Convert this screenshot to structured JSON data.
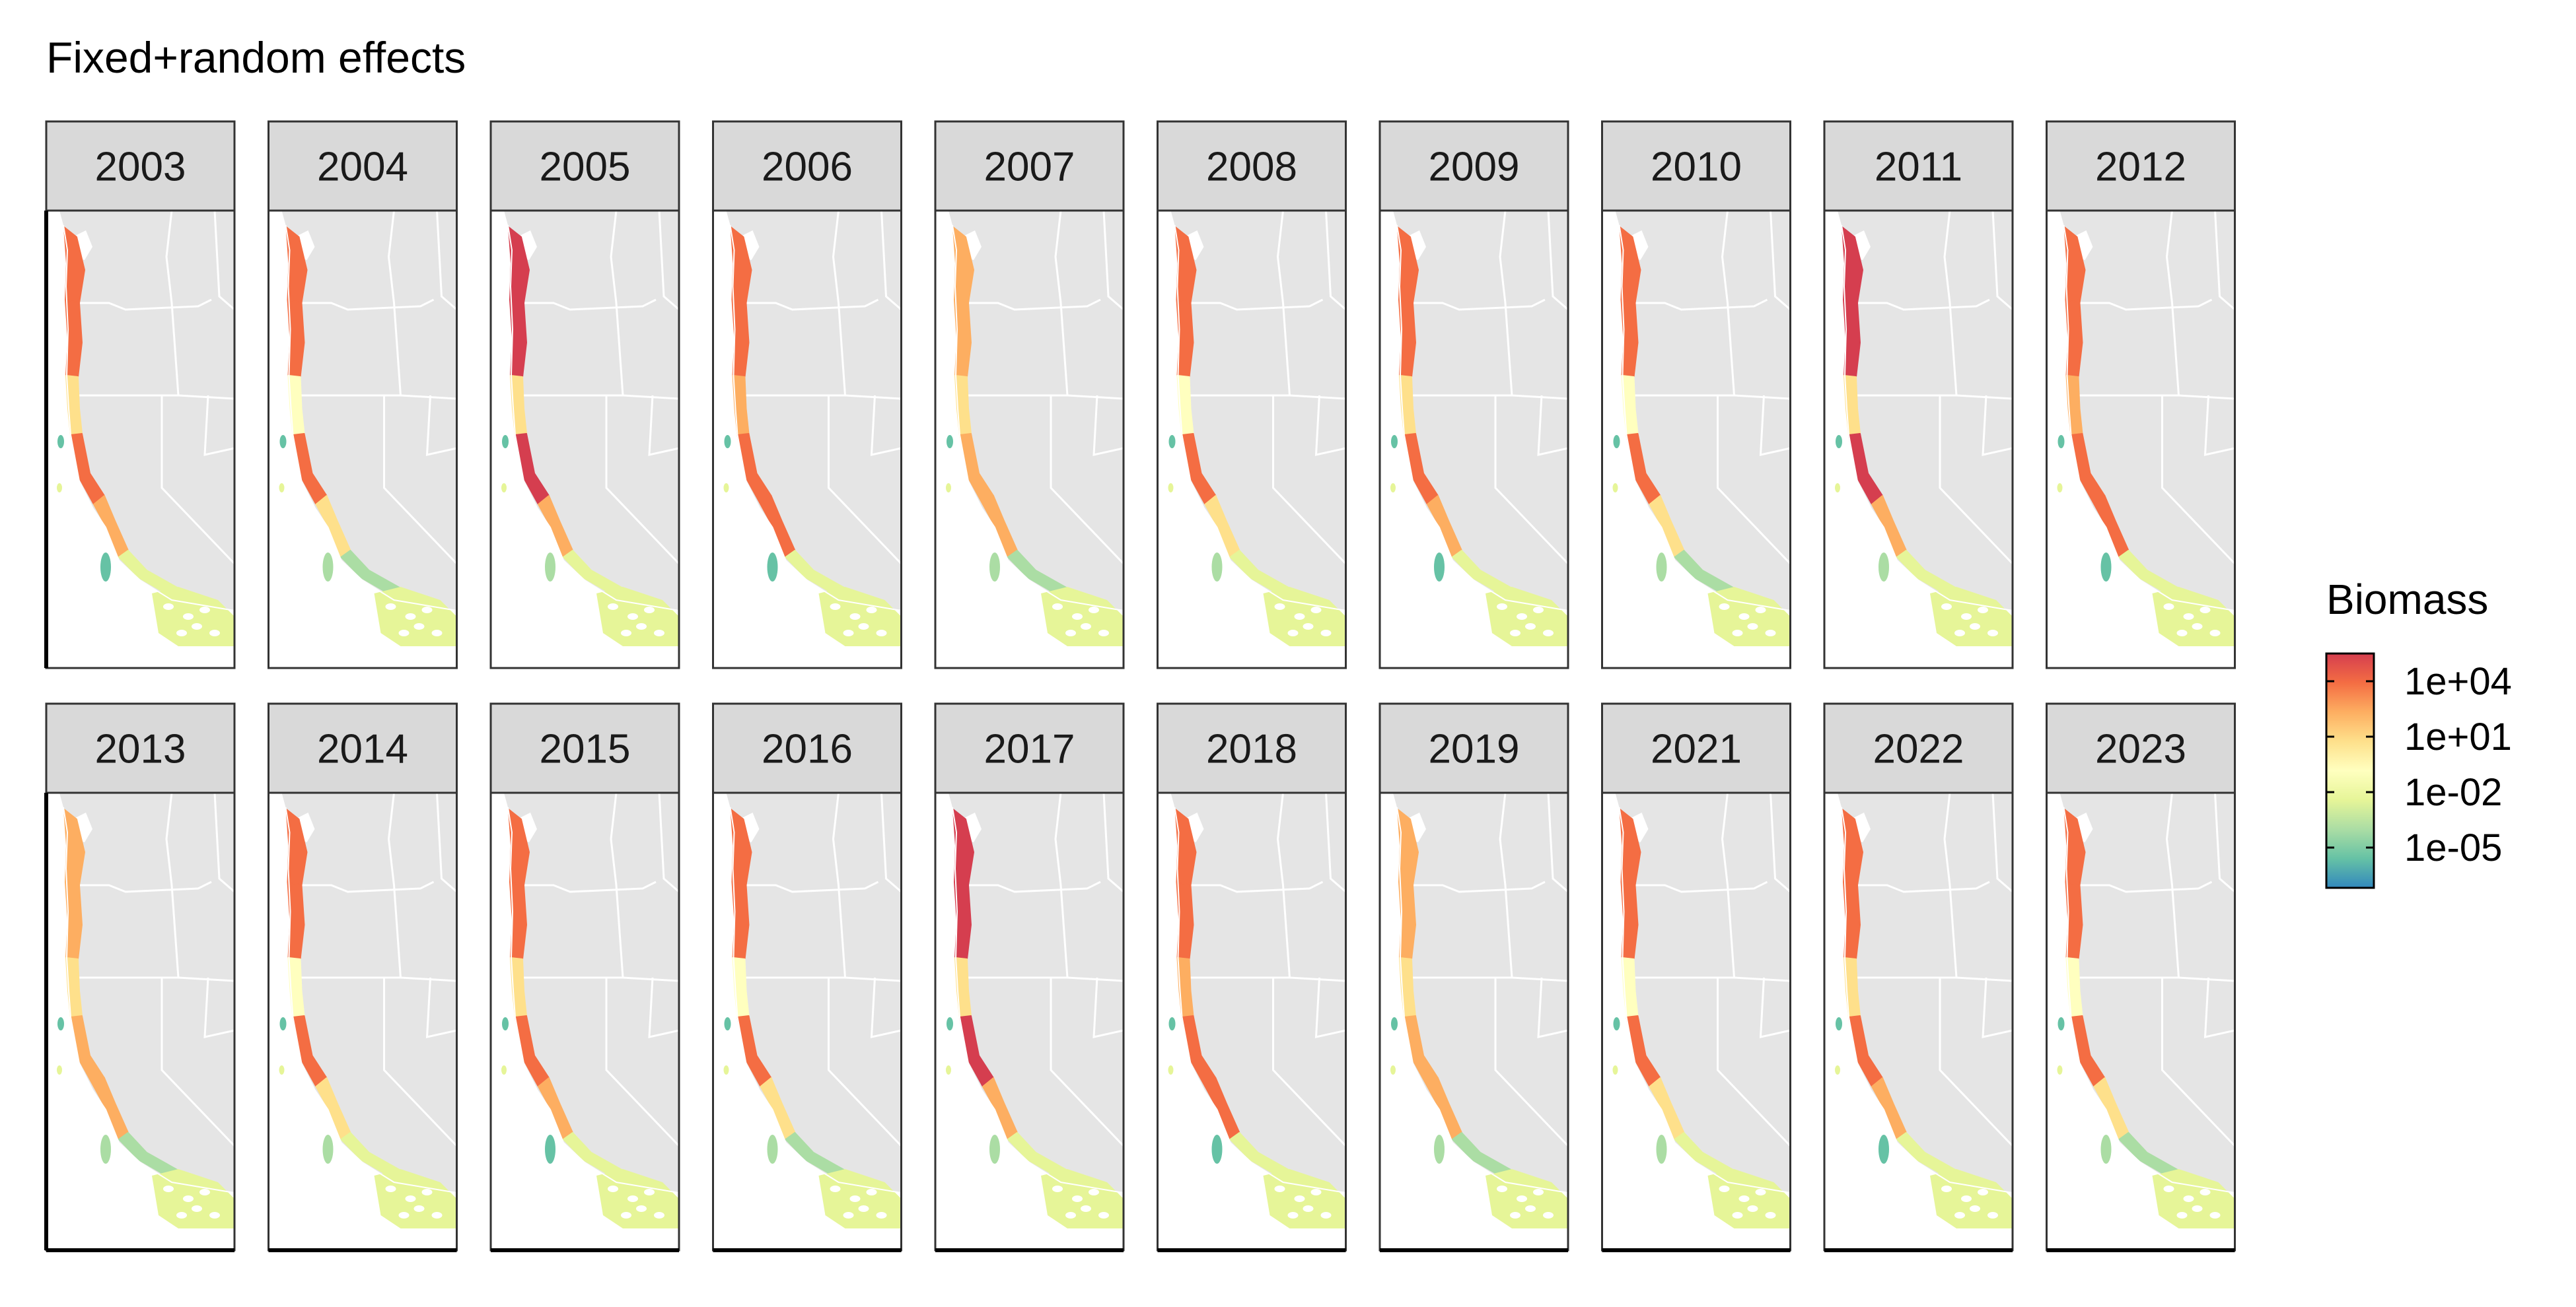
{
  "title": "Fixed+random effects",
  "legend": {
    "title": "Biomass",
    "scale": "log10",
    "palette": "Spectral",
    "labels": [
      "1e+04",
      "1e+01",
      "1e-02",
      "1e-05"
    ],
    "position": "right",
    "colors": [
      "#d53e4f",
      "#f46d43",
      "#fdae61",
      "#fee08b",
      "#ffffbf",
      "#e6f598",
      "#abdda4",
      "#66c2a5",
      "#3288bd"
    ]
  },
  "colors": {
    "land": "#e5e5e5",
    "borders": "#ffffff",
    "strip": "#d9d9d9",
    "panel_frame": "#333333"
  },
  "chart_data": {
    "type": "map",
    "facet_by": "year",
    "layout": "2 rows x 10 columns",
    "panels": [
      {
        "year": "2003"
      },
      {
        "year": "2004"
      },
      {
        "year": "2005"
      },
      {
        "year": "2006"
      },
      {
        "year": "2007"
      },
      {
        "year": "2008"
      },
      {
        "year": "2009"
      },
      {
        "year": "2010"
      },
      {
        "year": "2011"
      },
      {
        "year": "2012"
      },
      {
        "year": "2013"
      },
      {
        "year": "2014"
      },
      {
        "year": "2015"
      },
      {
        "year": "2016"
      },
      {
        "year": "2017"
      },
      {
        "year": "2018"
      },
      {
        "year": "2019"
      },
      {
        "year": "2021"
      },
      {
        "year": "2022"
      },
      {
        "year": "2023"
      }
    ]
  }
}
